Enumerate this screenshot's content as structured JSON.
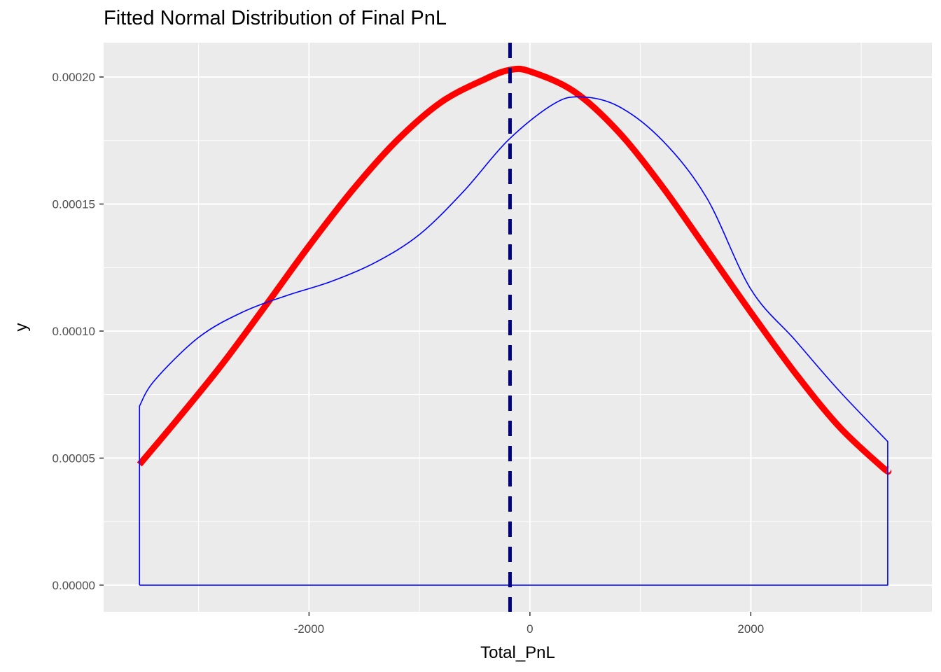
{
  "chart_data": {
    "type": "line",
    "title": "Fitted Normal Distribution of Final PnL",
    "xlabel": "Total_PnL",
    "ylabel": "y",
    "xlim": [
      -3860,
      3640
    ],
    "ylim": [
      -1.05e-05,
      0.0002135
    ],
    "x_ticks": [
      -2000,
      0,
      2000
    ],
    "x_tick_labels": [
      "-2000",
      "0",
      "2000"
    ],
    "x_minor_ticks": [
      -3000,
      -1000,
      1000,
      3000
    ],
    "y_ticks": [
      0,
      5e-05,
      0.0001,
      0.00015,
      0.0002
    ],
    "y_tick_labels": [
      "0.00000",
      "0.00005",
      "0.00010",
      "0.00015",
      "0.00020"
    ],
    "y_minor_ticks": [
      2.5e-05,
      7.5e-05,
      0.000125,
      0.000175
    ],
    "grid": true,
    "colors": {
      "panel_background": "#ebebeb",
      "grid": "#ffffff",
      "normal_fit": "#ff0000",
      "density": "#0000ff",
      "mean_line": "#000080"
    },
    "series": [
      {
        "role": "fitted-normal-curve",
        "style": "thick-line",
        "x": [
          -3535,
          -3200,
          -2800,
          -2400,
          -2000,
          -1600,
          -1200,
          -800,
          -400,
          -180,
          0,
          400,
          800,
          1200,
          1600,
          2000,
          2400,
          2800,
          3200,
          3240
        ],
        "y": [
          4.75e-05,
          6.48e-05,
          8.62e-05,
          0.0001096,
          0.0001335,
          0.0001558,
          0.0001752,
          0.0001902,
          0.0001993,
          0.0002028,
          0.0002022,
          0.0001943,
          0.0001785,
          0.0001568,
          0.0001322,
          0.0001074,
          8.36e-05,
          6.24e-05,
          4.61e-05,
          4.55e-05
        ]
      },
      {
        "role": "kernel-density-curve",
        "style": "thin-line",
        "x": [
          -3535,
          -3535,
          -3400,
          -3000,
          -2600,
          -2200,
          -1800,
          -1400,
          -1000,
          -600,
          -200,
          200,
          450,
          800,
          1200,
          1600,
          2000,
          2400,
          2800,
          3240,
          3240,
          -3535
        ],
        "y": [
          0,
          7.05e-05,
          8.05e-05,
          9.75e-05,
          0.0001075,
          0.000114,
          0.0001195,
          0.000127,
          0.000138,
          0.000155,
          0.000175,
          0.000189,
          0.0001922,
          0.0001885,
          0.000175,
          0.0001525,
          0.0001165,
          9.65e-05,
          7.65e-05,
          5.65e-05,
          0,
          0
        ]
      }
    ],
    "vlines": [
      {
        "role": "mean-line",
        "x": -180,
        "style": "dashed"
      }
    ]
  }
}
